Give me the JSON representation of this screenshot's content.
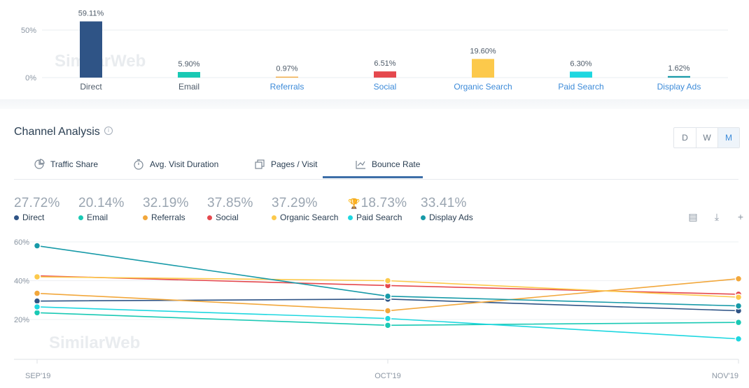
{
  "chart_data": [
    {
      "type": "bar",
      "categories": [
        "Direct",
        "Email",
        "Referrals",
        "Social",
        "Organic Search",
        "Paid Search",
        "Display Ads"
      ],
      "values": [
        59.11,
        5.9,
        0.97,
        6.51,
        19.6,
        6.3,
        1.62
      ],
      "value_labels": [
        "59.11%",
        "5.90%",
        "0.97%",
        "6.51%",
        "19.60%",
        "6.30%",
        "1.62%"
      ],
      "colors": [
        "#2f5486",
        "#19c9b4",
        "#f2a73b",
        "#e5484d",
        "#fcc94b",
        "#1ed7e0",
        "#179aa8"
      ],
      "yticks": [
        "50%",
        "0%"
      ],
      "ylim": [
        0,
        60
      ]
    },
    {
      "type": "line",
      "x": [
        "SEP'19",
        "OCT'19",
        "NOV'19"
      ],
      "ylim": [
        0,
        60
      ],
      "yticks": [
        "60%",
        "40%",
        "20%"
      ],
      "series": [
        {
          "name": "Direct",
          "values": [
            29.5,
            30.5,
            24.5
          ],
          "color": "#2f5486"
        },
        {
          "name": "Email",
          "values": [
            23.5,
            17.0,
            18.5
          ],
          "color": "#19c9b4"
        },
        {
          "name": "Referrals",
          "values": [
            33.5,
            24.5,
            41.0
          ],
          "color": "#f2a73b"
        },
        {
          "name": "Social",
          "values": [
            42.5,
            37.5,
            33.0
          ],
          "color": "#e5484d"
        },
        {
          "name": "Organic Search",
          "values": [
            42.0,
            40.0,
            31.5
          ],
          "color": "#fcc94b"
        },
        {
          "name": "Paid Search",
          "values": [
            26.5,
            20.5,
            10.0
          ],
          "color": "#1ed7e0"
        },
        {
          "name": "Display Ads",
          "values": [
            58.0,
            32.0,
            27.0
          ],
          "color": "#179aa8"
        }
      ]
    }
  ],
  "watermark": "SimilarWeb",
  "section": {
    "title": "Channel Analysis",
    "info_icon": "i"
  },
  "granularity": {
    "options": [
      "D",
      "W",
      "M"
    ],
    "selected": "M"
  },
  "tabs": [
    {
      "label": "Traffic Share",
      "icon": "pie-icon"
    },
    {
      "label": "Avg. Visit Duration",
      "icon": "stopwatch-icon"
    },
    {
      "label": "Pages / Visit",
      "icon": "pages-icon"
    },
    {
      "label": "Bounce Rate",
      "icon": "bounce-icon",
      "active": true
    }
  ],
  "legend": [
    {
      "value": "27.72%",
      "label": "Direct",
      "color": "#2f5486"
    },
    {
      "value": "20.14%",
      "label": "Email",
      "color": "#19c9b4"
    },
    {
      "value": "32.19%",
      "label": "Referrals",
      "color": "#f2a73b"
    },
    {
      "value": "37.85%",
      "label": "Social",
      "color": "#e5484d"
    },
    {
      "value": "37.29%",
      "label": "Organic Search",
      "color": "#fcc94b"
    },
    {
      "value": "18.73%",
      "label": "Paid Search",
      "color": "#1ed7e0",
      "trophy": true
    },
    {
      "value": "33.41%",
      "label": "Display Ads",
      "color": "#179aa8"
    }
  ],
  "tools": [
    {
      "name": "export-excel-icon",
      "glyph": "▤"
    },
    {
      "name": "download-icon",
      "glyph": "⤓"
    },
    {
      "name": "add-icon",
      "glyph": "+"
    }
  ]
}
